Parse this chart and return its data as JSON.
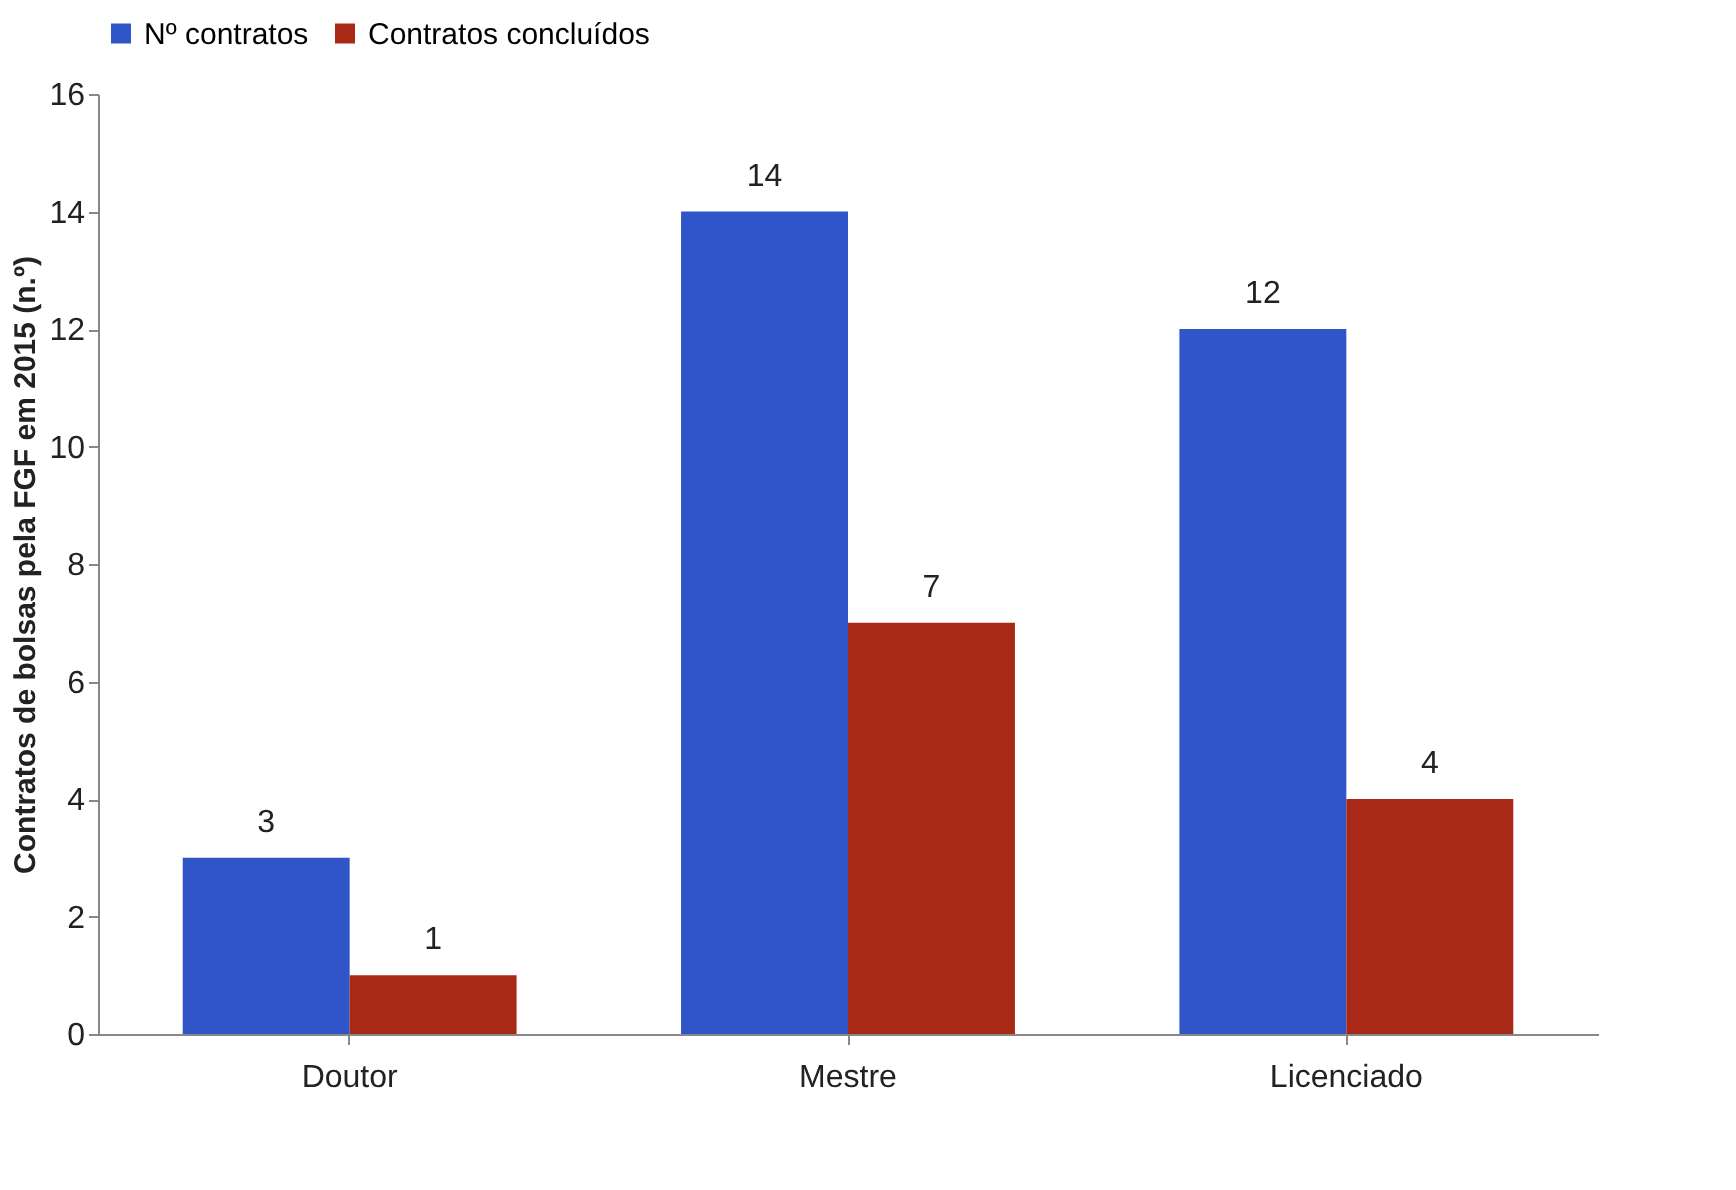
{
  "chart_data": {
    "type": "bar",
    "ylabel": "Contratos de bolsas pela FGF em 2015 (n.º)",
    "categories": [
      "Doutor",
      "Mestre",
      "Licenciado"
    ],
    "series": [
      {
        "name": "Nº contratos",
        "color": "#2f55c8",
        "values": [
          3,
          14,
          12
        ]
      },
      {
        "name": "Contratos concluídos",
        "color": "#a82a16",
        "values": [
          1,
          7,
          4
        ]
      }
    ],
    "ylim": [
      0,
      16
    ],
    "yticks": [
      0,
      2,
      4,
      6,
      8,
      10,
      12,
      14,
      16
    ],
    "grid": false,
    "legend": "top",
    "data_labels": true
  }
}
